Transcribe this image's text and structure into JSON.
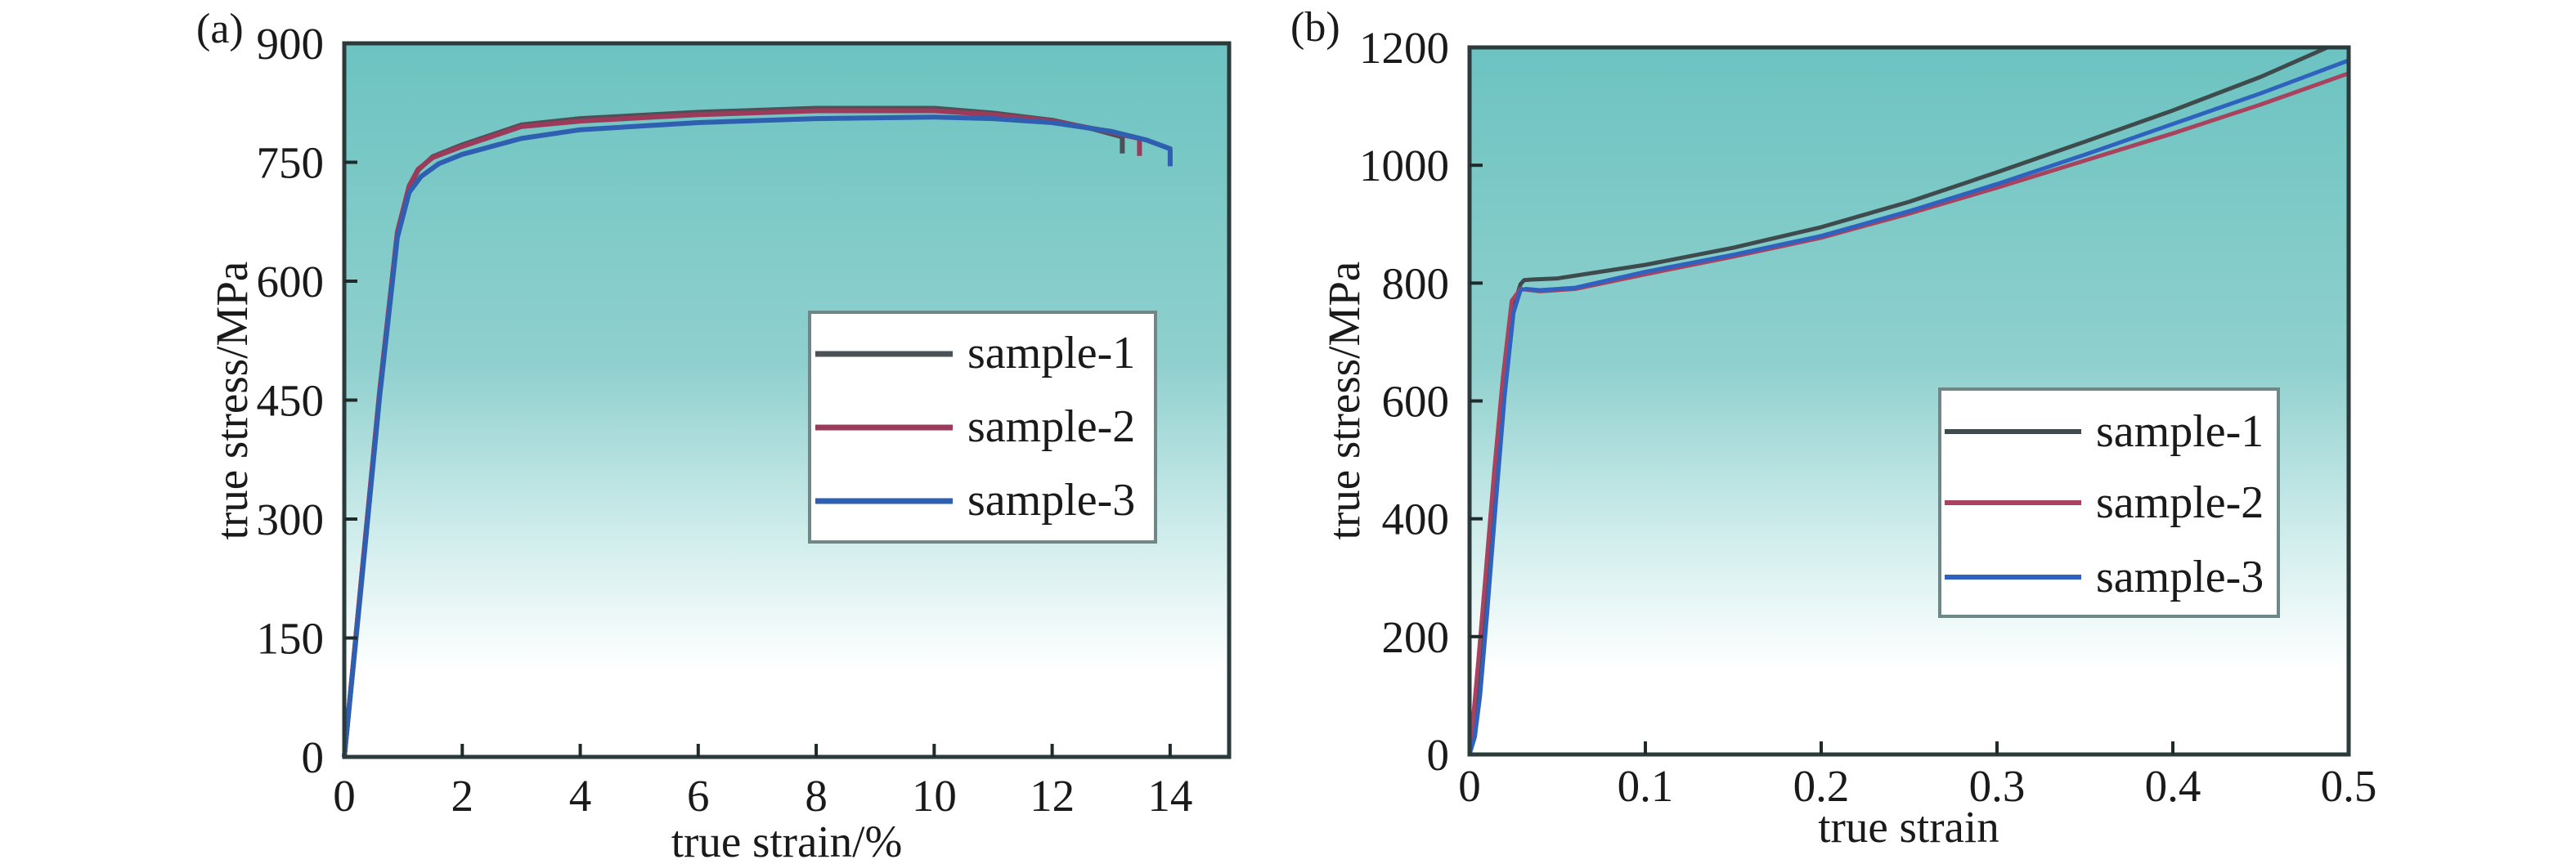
{
  "chart_data": [
    {
      "type": "line",
      "panel_label": "(a)",
      "title": "",
      "xlabel": "true strain/%",
      "ylabel": "true stress/MPa",
      "xlim": [
        0,
        15
      ],
      "ylim": [
        0,
        900
      ],
      "xticks": [
        0,
        2,
        4,
        6,
        8,
        10,
        12,
        14
      ],
      "xtick_labels": [
        "0",
        "2",
        "4",
        "6",
        "8",
        "10",
        "12",
        "14"
      ],
      "yticks": [
        0,
        150,
        300,
        450,
        600,
        750,
        900
      ],
      "ytick_labels": [
        "0",
        "150",
        "300",
        "450",
        "600",
        "750",
        "900"
      ],
      "grid": false,
      "legend_position": "center-right",
      "background": {
        "top": "#6cc3c1",
        "mid": "#8fd0ce",
        "low": "#d2eeed",
        "bottom": "#ffffff"
      },
      "series": [
        {
          "name": "sample-1",
          "color": "#4a5157",
          "x": [
            0,
            0.3,
            0.6,
            0.9,
            1.1,
            1.25,
            1.5,
            2.0,
            3.0,
            4.0,
            6.0,
            8.0,
            10.0,
            11.0,
            12.0,
            12.7,
            13.19,
            13.19
          ],
          "y": [
            0,
            230,
            460,
            660,
            718,
            740,
            757,
            772,
            797,
            805,
            813,
            818,
            818,
            812,
            803,
            792,
            782,
            761
          ]
        },
        {
          "name": "sample-2",
          "color": "#9b3a5a",
          "x": [
            0,
            0.3,
            0.6,
            0.9,
            1.1,
            1.25,
            1.5,
            2.0,
            3.0,
            4.0,
            6.0,
            8.0,
            10.0,
            11.0,
            12.0,
            12.8,
            13.48,
            13.48
          ],
          "y": [
            0,
            232,
            462,
            662,
            720,
            741,
            756,
            770,
            795,
            802,
            810,
            815,
            815,
            810,
            802,
            791,
            780,
            758
          ]
        },
        {
          "name": "sample-3",
          "color": "#2f5fb0",
          "x": [
            0,
            0.3,
            0.6,
            0.9,
            1.1,
            1.3,
            1.6,
            2.0,
            3.0,
            4.0,
            6.0,
            8.0,
            10.0,
            11.0,
            12.0,
            13.0,
            13.6,
            14.0,
            14.0
          ],
          "y": [
            0,
            225,
            455,
            655,
            712,
            732,
            748,
            760,
            780,
            791,
            800,
            805,
            807,
            805,
            800,
            789,
            778,
            767,
            745
          ]
        }
      ]
    },
    {
      "type": "line",
      "panel_label": "(b)",
      "title": "",
      "xlabel": "true strain",
      "ylabel": "true stress/MPa",
      "xlim": [
        0,
        0.5
      ],
      "ylim": [
        0,
        1200
      ],
      "xticks": [
        0,
        0.1,
        0.2,
        0.3,
        0.4,
        0.5
      ],
      "xtick_labels": [
        "0",
        "0.1",
        "0.2",
        "0.3",
        "0.4",
        "0.5"
      ],
      "yticks": [
        0,
        200,
        400,
        600,
        800,
        1000,
        1200
      ],
      "ytick_labels": [
        "0",
        "200",
        "400",
        "600",
        "800",
        "1000",
        "1200"
      ],
      "grid": false,
      "legend_position": "center-right",
      "background": {
        "top": "#6cc3c1",
        "mid": "#8fd0ce",
        "low": "#d2eeed",
        "bottom": "#ffffff"
      },
      "series": [
        {
          "name": "sample-1",
          "color": "#3e4a4c",
          "x": [
            0,
            0.003,
            0.006,
            0.01,
            0.015,
            0.02,
            0.025,
            0.029,
            0.031,
            0.035,
            0.05,
            0.1,
            0.15,
            0.2,
            0.25,
            0.3,
            0.35,
            0.4,
            0.45,
            0.488
          ],
          "y": [
            0,
            40,
            120,
            260,
            450,
            620,
            760,
            798,
            805,
            806,
            808,
            831,
            860,
            895,
            938,
            988,
            1040,
            1093,
            1150,
            1200
          ]
        },
        {
          "name": "sample-2",
          "color": "#a8425e",
          "x": [
            0,
            0.002,
            0.005,
            0.009,
            0.014,
            0.019,
            0.024,
            0.029,
            0.032,
            0.04,
            0.06,
            0.1,
            0.15,
            0.2,
            0.25,
            0.3,
            0.35,
            0.4,
            0.45,
            0.5
          ],
          "y": [
            0,
            60,
            160,
            300,
            480,
            640,
            770,
            790,
            789,
            786,
            790,
            815,
            845,
            877,
            918,
            962,
            1008,
            1054,
            1103,
            1156
          ]
        },
        {
          "name": "sample-3",
          "color": "#2f62bf",
          "x": [
            0,
            0.003,
            0.006,
            0.01,
            0.015,
            0.02,
            0.025,
            0.029,
            0.032,
            0.04,
            0.06,
            0.1,
            0.15,
            0.2,
            0.25,
            0.3,
            0.35,
            0.4,
            0.45,
            0.5
          ],
          "y": [
            0,
            30,
            100,
            240,
            430,
            610,
            750,
            788,
            790,
            788,
            792,
            819,
            848,
            880,
            922,
            968,
            1018,
            1070,
            1122,
            1178
          ]
        }
      ]
    }
  ]
}
